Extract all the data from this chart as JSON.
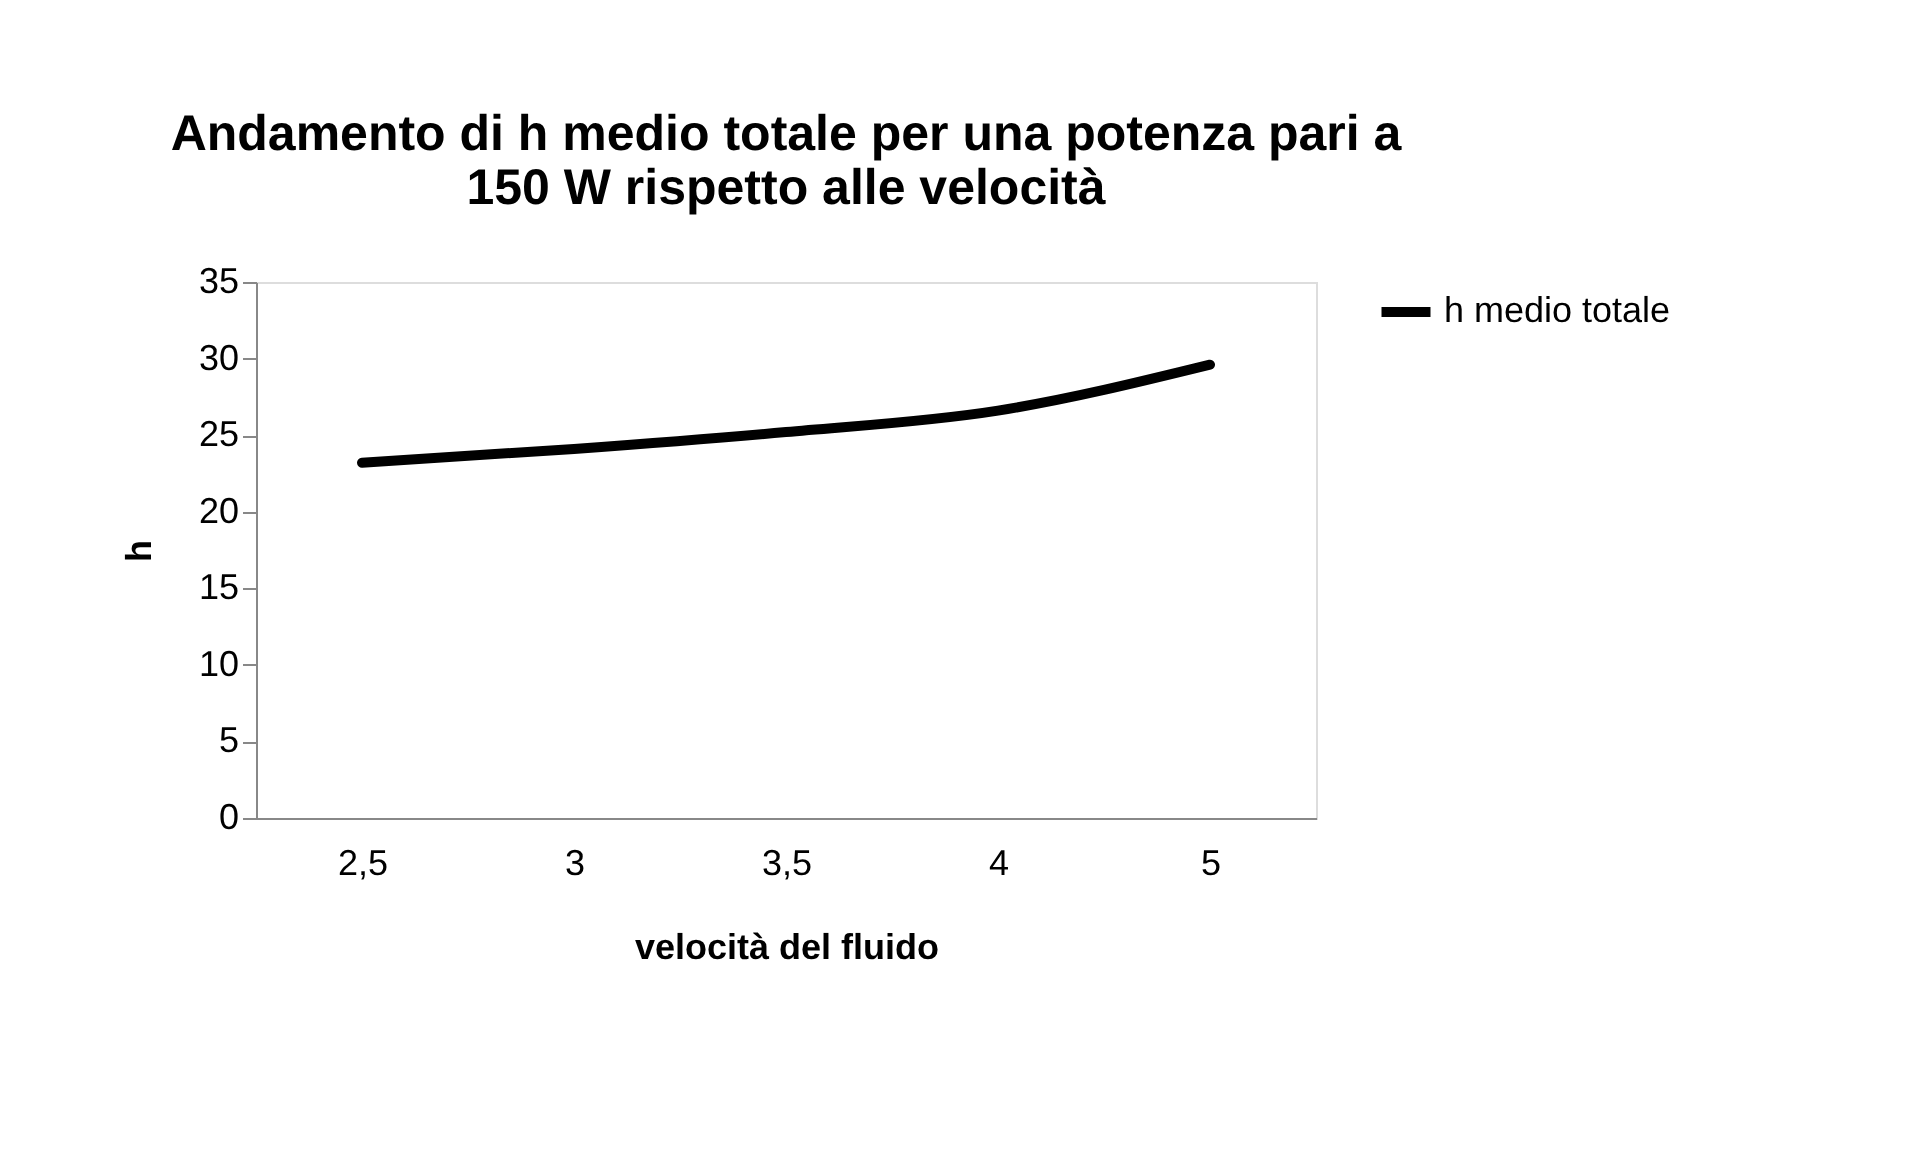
{
  "chart_data": {
    "type": "line",
    "title": [
      "Andamento di h medio totale per una potenza pari a",
      "150 W rispetto alle velocità"
    ],
    "xlabel": "velocità del fluido",
    "ylabel": "h",
    "categories": [
      "2,5",
      "3",
      "3,5",
      "4",
      "5"
    ],
    "series": [
      {
        "name": "h medio totale",
        "color": "#000000",
        "values": [
          23.2,
          24.1,
          25.2,
          26.6,
          29.6
        ]
      }
    ],
    "ylim": [
      0,
      35
    ],
    "yticks": [
      0,
      5,
      10,
      15,
      20,
      25,
      30,
      35
    ],
    "grid": false,
    "legend": "right",
    "marker": "none",
    "line_style": "solid"
  }
}
